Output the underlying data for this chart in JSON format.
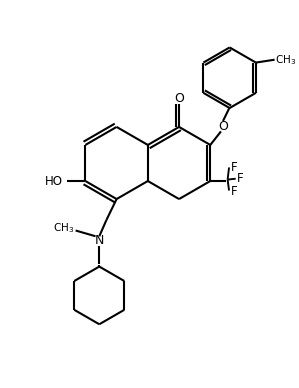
{
  "bg_color": "#ffffff",
  "line_color": "#000000",
  "lw": 1.5,
  "figsize": [
    2.99,
    3.88
  ],
  "dpi": 100,
  "xlim": [
    0,
    10
  ],
  "ylim": [
    0,
    13
  ]
}
